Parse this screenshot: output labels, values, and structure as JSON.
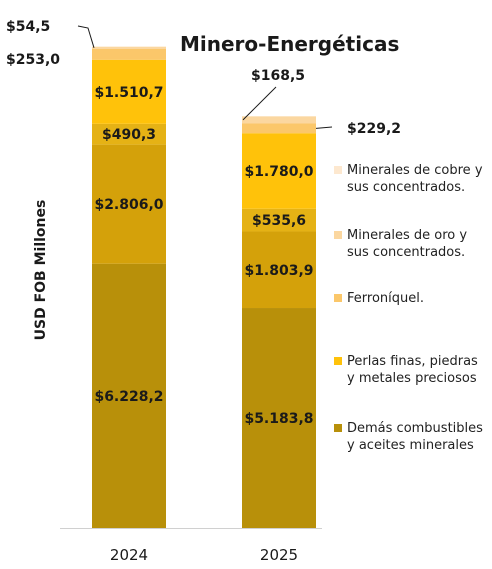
{
  "chart_data": {
    "type": "bar",
    "stacked": true,
    "title": "Minero-Energéticas",
    "ylabel": "USD FOB Millones",
    "categories": [
      "2024",
      "2025"
    ],
    "series": [
      {
        "name": "Demás combustibles y aceites minerales",
        "color": "#b8900a",
        "values": [
          6228.2,
          5183.8
        ],
        "labels": [
          "$6.228,2",
          "$5.183,8"
        ]
      },
      {
        "name": "",
        "color": "#d4a10a",
        "values": [
          2806.0,
          1803.9
        ],
        "labels": [
          "$2.806,0",
          "$1.803,9"
        ]
      },
      {
        "name": "",
        "color": "#e5b215",
        "values": [
          490.3,
          535.6
        ],
        "labels": [
          "$490,3",
          "$535,6"
        ]
      },
      {
        "name": "Perlas finas, piedras y metales preciosos",
        "color": "#ffc20a",
        "values": [
          1510.7,
          1780.0
        ],
        "labels": [
          "$1.510,7",
          "$1.780,0"
        ]
      },
      {
        "name": "Ferroníquel.",
        "color": "#fbc76a",
        "values": [
          253.0,
          229.2
        ],
        "labels": [
          "$253,0",
          "$229,2"
        ]
      },
      {
        "name": "Minerales de oro y sus concentrados.",
        "color": "#fbd7a0",
        "values": [
          54.5,
          168.5
        ],
        "labels": [
          "$54,5",
          "$168,5"
        ]
      },
      {
        "name": "Minerales de cobre y sus concentrados.",
        "color": "#fde8cf",
        "values": [
          0,
          0
        ],
        "labels": [
          "",
          ""
        ]
      }
    ],
    "legend_order": [
      6,
      5,
      4,
      3,
      0
    ],
    "legend_position": "right",
    "ylim": [
      0,
      11500
    ],
    "grid": false
  }
}
